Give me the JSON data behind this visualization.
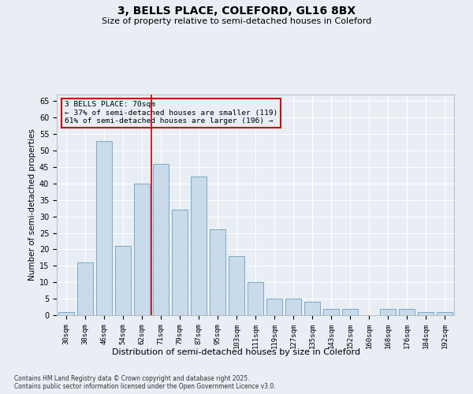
{
  "title_line1": "3, BELLS PLACE, COLEFORD, GL16 8BX",
  "title_line2": "Size of property relative to semi-detached houses in Coleford",
  "xlabel": "Distribution of semi-detached houses by size in Coleford",
  "ylabel": "Number of semi-detached properties",
  "categories": [
    "30sqm",
    "38sqm",
    "46sqm",
    "54sqm",
    "62sqm",
    "71sqm",
    "79sqm",
    "87sqm",
    "95sqm",
    "103sqm",
    "111sqm",
    "119sqm",
    "127sqm",
    "135sqm",
    "143sqm",
    "152sqm",
    "160sqm",
    "168sqm",
    "176sqm",
    "184sqm",
    "192sqm"
  ],
  "values": [
    1,
    16,
    53,
    21,
    40,
    46,
    32,
    42,
    26,
    18,
    10,
    5,
    5,
    4,
    2,
    2,
    0,
    2,
    2,
    1,
    1
  ],
  "bar_color": "#c9daea",
  "bar_edge_color": "#7aaac8",
  "vline_index": 5,
  "vline_color": "#cc0000",
  "annotation_title": "3 BELLS PLACE: 70sqm",
  "annotation_line1": "← 37% of semi-detached houses are smaller (119)",
  "annotation_line2": "61% of semi-detached houses are larger (196) →",
  "annotation_box_edgecolor": "#cc0000",
  "ylim": [
    0,
    67
  ],
  "yticks": [
    0,
    5,
    10,
    15,
    20,
    25,
    30,
    35,
    40,
    45,
    50,
    55,
    60,
    65
  ],
  "background_color": "#e8eef4",
  "grid_color": "#ffffff",
  "footer_line1": "Contains HM Land Registry data © Crown copyright and database right 2025.",
  "footer_line2": "Contains public sector information licensed under the Open Government Licence v3.0."
}
